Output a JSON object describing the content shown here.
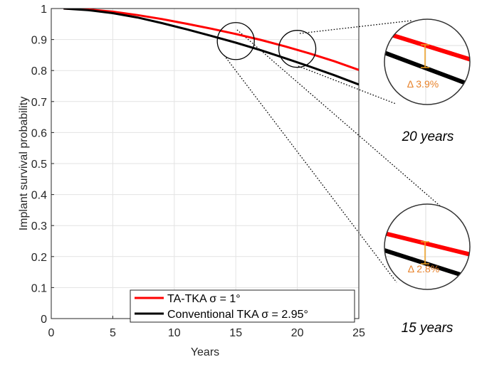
{
  "chart_data": {
    "type": "line",
    "xlabel": "Years",
    "ylabel": "Implant survival probability",
    "xlim": [
      0,
      25
    ],
    "ylim": [
      0,
      1
    ],
    "xticks": [
      "0",
      "5",
      "10",
      "15",
      "20",
      "25"
    ],
    "yticks": [
      "0",
      "0.1",
      "0.2",
      "0.3",
      "0.4",
      "0.5",
      "0.6",
      "0.7",
      "0.8",
      "0.9",
      "1"
    ],
    "grid": true,
    "legend_position": "bottom-right",
    "x": [
      1,
      3,
      5,
      7,
      9,
      11,
      13,
      15,
      17,
      19,
      21,
      23,
      25
    ],
    "series": [
      {
        "name": "TA-TKA σ = 1°",
        "color": "#ff0000",
        "values": [
          1.0,
          0.997,
          0.99,
          0.979,
          0.966,
          0.951,
          0.935,
          0.918,
          0.899,
          0.878,
          0.855,
          0.83,
          0.802
        ]
      },
      {
        "name": "Conventional TKA σ = 2.95°",
        "color": "#000000",
        "values": [
          1.0,
          0.995,
          0.985,
          0.971,
          0.953,
          0.933,
          0.912,
          0.89,
          0.866,
          0.84,
          0.813,
          0.785,
          0.755
        ]
      }
    ],
    "zoom_markers": [
      {
        "x": 15,
        "y": 0.895
      },
      {
        "x": 20,
        "y": 0.87
      }
    ],
    "zoom_insets": [
      {
        "caption": "20 years",
        "delta": "Δ 3.9%"
      },
      {
        "caption": "15 years",
        "delta": "Δ 2.8%"
      }
    ],
    "accent_color": "#f0a020"
  }
}
